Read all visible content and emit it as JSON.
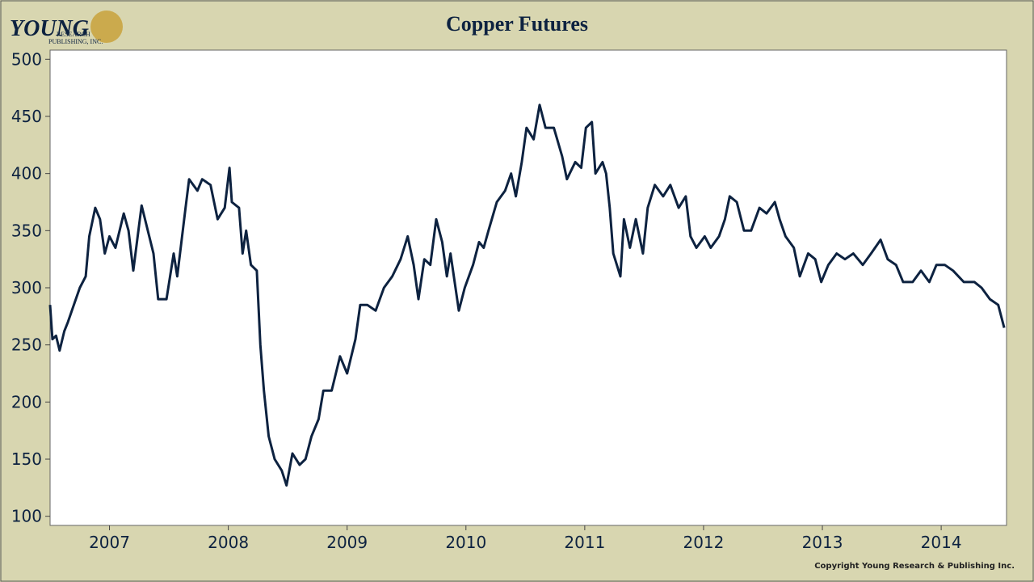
{
  "chart_data": {
    "type": "line",
    "title": "Copper Futures",
    "logo": {
      "name": "YOUNG",
      "sub1": "RESEARCH",
      "sub2": "PUBLISHING, INC."
    },
    "copyright": "Copyright Young Research & Publishing Inc.",
    "x": [
      2007.0,
      2007.02,
      2007.05,
      2007.08,
      2007.12,
      2007.15,
      2007.2,
      2007.25,
      2007.3,
      2007.33,
      2007.38,
      2007.42,
      2007.46,
      2007.5,
      2007.55,
      2007.62,
      2007.66,
      2007.7,
      2007.77,
      2007.87,
      2007.91,
      2007.98,
      2008.04,
      2008.07,
      2008.14,
      2008.17,
      2008.24,
      2008.28,
      2008.35,
      2008.41,
      2008.47,
      2008.51,
      2008.53,
      2008.59,
      2008.62,
      2008.65,
      2008.69,
      2008.74,
      2008.77,
      2008.8,
      2008.84,
      2008.89,
      2008.95,
      2008.99,
      2009.04,
      2009.1,
      2009.15,
      2009.2,
      2009.26,
      2009.3,
      2009.37,
      2009.44,
      2009.5,
      2009.57,
      2009.61,
      2009.67,
      2009.74,
      2009.81,
      2009.88,
      2009.95,
      2010.01,
      2010.06,
      2010.1,
      2010.15,
      2010.2,
      2010.25,
      2010.3,
      2010.34,
      2010.37,
      2010.44,
      2010.49,
      2010.56,
      2010.61,
      2010.65,
      2010.69,
      2010.76,
      2010.83,
      2010.88,
      2010.92,
      2010.97,
      2011.01,
      2011.07,
      2011.12,
      2011.17,
      2011.24,
      2011.31,
      2011.35,
      2011.42,
      2011.47,
      2011.51,
      2011.56,
      2011.59,
      2011.65,
      2011.68,
      2011.71,
      2011.74,
      2011.8,
      2011.83,
      2011.88,
      2011.93,
      2011.99,
      2012.03,
      2012.09,
      2012.16,
      2012.22,
      2012.29,
      2012.35,
      2012.39,
      2012.44,
      2012.51,
      2012.56,
      2012.63,
      2012.68,
      2012.72,
      2012.78,
      2012.84,
      2012.9,
      2012.97,
      2013.03,
      2013.1,
      2013.14,
      2013.19,
      2013.26,
      2013.31,
      2013.38,
      2013.44,
      2013.49,
      2013.55,
      2013.62,
      2013.69,
      2013.76,
      2013.84,
      2013.91,
      2013.99,
      2014.05,
      2014.12,
      2014.18,
      2014.26,
      2014.33,
      2014.4,
      2014.46,
      2014.53,
      2014.6,
      2014.69,
      2014.78,
      2014.84,
      2014.91,
      2014.98,
      2015.03
    ],
    "series": [
      {
        "name": "Copper Futures",
        "color": "#0d2240",
        "values": [
          285,
          255,
          258,
          245,
          262,
          270,
          285,
          300,
          310,
          345,
          370,
          360,
          330,
          345,
          335,
          365,
          350,
          315,
          372,
          330,
          290,
          290,
          330,
          310,
          370,
          395,
          385,
          395,
          390,
          360,
          370,
          405,
          375,
          370,
          330,
          350,
          320,
          315,
          250,
          210,
          170,
          150,
          140,
          127,
          155,
          145,
          150,
          170,
          185,
          210,
          210,
          240,
          225,
          255,
          285,
          285,
          280,
          300,
          310,
          325,
          345,
          320,
          290,
          325,
          320,
          360,
          340,
          310,
          330,
          280,
          300,
          320,
          340,
          335,
          350,
          375,
          385,
          400,
          380,
          410,
          440,
          430,
          460,
          440,
          440,
          415,
          395,
          410,
          405,
          440,
          445,
          400,
          410,
          400,
          370,
          330,
          310,
          360,
          335,
          360,
          330,
          370,
          390,
          380,
          390,
          370,
          380,
          345,
          335,
          345,
          335,
          345,
          360,
          380,
          375,
          350,
          350,
          370,
          365,
          375,
          360,
          345,
          335,
          310,
          330,
          325,
          305,
          320,
          330,
          325,
          330,
          320,
          330,
          342,
          325,
          320,
          305,
          305,
          315,
          305,
          320,
          320,
          315,
          305,
          305,
          300,
          290,
          285,
          265
        ]
      }
    ],
    "xlim": [
      2007,
      2015.05
    ],
    "xticks": [
      {
        "value": 2007.5,
        "label": "2007"
      },
      {
        "value": 2008.5,
        "label": "2008"
      },
      {
        "value": 2009.5,
        "label": "2009"
      },
      {
        "value": 2010.5,
        "label": "2010"
      },
      {
        "value": 2011.5,
        "label": "2011"
      },
      {
        "value": 2012.5,
        "label": "2012"
      },
      {
        "value": 2013.5,
        "label": "2013"
      },
      {
        "value": 2014.5,
        "label": "2014"
      }
    ],
    "ylim": [
      92,
      508
    ],
    "yticks": [
      100,
      150,
      200,
      250,
      300,
      350,
      400,
      450,
      500
    ]
  }
}
